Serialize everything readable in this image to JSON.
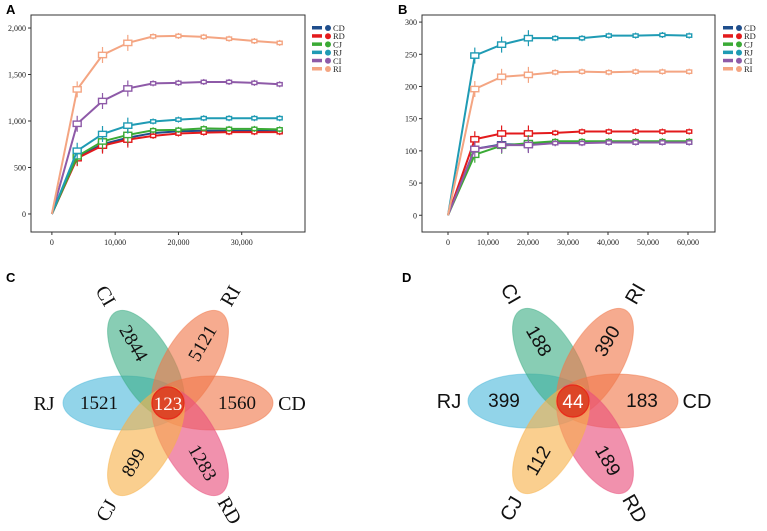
{
  "panels": {
    "A": "A",
    "B": "B",
    "C": "C",
    "D": "D"
  },
  "colors": {
    "CD": "#1f4e8c",
    "RD": "#e31a1c",
    "CJ": "#3aaa35",
    "RJ": "#1f9bb4",
    "CI": "#8e5aa8",
    "RI": "#f4a582"
  },
  "chart_data": [
    {
      "type": "line",
      "panel": "A",
      "title": "",
      "xlabel": "",
      "ylabel": "",
      "xlim": [
        -3300,
        40000
      ],
      "ylim": [
        -194,
        2140
      ],
      "xticks": [
        0,
        10000,
        20000,
        30000
      ],
      "xtick_labels": [
        "0",
        "10,000",
        "20,000",
        "30,000"
      ],
      "yticks": [
        0,
        500,
        1000,
        1500,
        2000
      ],
      "ytick_labels": [
        "0",
        "500",
        "1,000",
        "1,500",
        "2,000"
      ],
      "legend": [
        "CD",
        "RD",
        "CJ",
        "RJ",
        "CI",
        "RI"
      ],
      "legend_position": "right",
      "x": [
        0,
        4000,
        8000,
        12000,
        16000,
        20000,
        24000,
        28000,
        32000,
        36000
      ],
      "series": [
        {
          "name": "CD",
          "values": [
            0,
            610,
            750,
            820,
            870,
            890,
            895,
            895,
            895,
            890
          ]
        },
        {
          "name": "RD",
          "values": [
            0,
            600,
            735,
            800,
            840,
            865,
            875,
            880,
            880,
            880
          ]
        },
        {
          "name": "CJ",
          "values": [
            0,
            620,
            780,
            850,
            900,
            905,
            920,
            915,
            915,
            910
          ]
        },
        {
          "name": "RJ",
          "values": [
            0,
            680,
            860,
            950,
            995,
            1015,
            1030,
            1030,
            1030,
            1030
          ]
        },
        {
          "name": "CI",
          "values": [
            0,
            970,
            1215,
            1350,
            1405,
            1410,
            1420,
            1420,
            1410,
            1395
          ]
        },
        {
          "name": "RI",
          "values": [
            0,
            1340,
            1710,
            1840,
            1910,
            1915,
            1905,
            1885,
            1860,
            1840
          ]
        }
      ]
    },
    {
      "type": "line",
      "panel": "B",
      "title": "",
      "xlabel": "",
      "ylabel": "",
      "xlim": [
        -6500,
        66750
      ],
      "ylim": [
        -26,
        311
      ],
      "xticks": [
        0,
        10000,
        20000,
        30000,
        40000,
        50000,
        60000
      ],
      "xtick_labels": [
        "0",
        "10,000",
        "20,000",
        "30,000",
        "40,000",
        "50,000",
        "60,000"
      ],
      "yticks": [
        0,
        50,
        100,
        150,
        200,
        250,
        300
      ],
      "ytick_labels": [
        "0",
        "50",
        "100",
        "150",
        "200",
        "250",
        "300"
      ],
      "legend": [
        "CD",
        "RD",
        "CJ",
        "RJ",
        "CI",
        "RI"
      ],
      "legend_position": "right",
      "x": [
        0,
        6700,
        13400,
        20100,
        26800,
        33500,
        40200,
        46900,
        53600,
        60300
      ],
      "series": [
        {
          "name": "CD",
          "values": [
            0,
            103,
            110,
            110,
            112,
            113,
            113,
            113,
            113,
            113
          ]
        },
        {
          "name": "RD",
          "values": [
            0,
            118,
            127,
            127,
            128,
            130,
            130,
            130,
            130,
            130
          ]
        },
        {
          "name": "CJ",
          "values": [
            0,
            94,
            108,
            112,
            115,
            115,
            115,
            115,
            115,
            115
          ]
        },
        {
          "name": "RJ",
          "values": [
            0,
            248,
            265,
            275,
            275,
            275,
            279,
            279,
            280,
            279
          ]
        },
        {
          "name": "CI",
          "values": [
            0,
            103,
            109,
            109,
            112,
            112,
            113,
            113,
            113,
            113
          ]
        },
        {
          "name": "RI",
          "values": [
            0,
            196,
            215,
            218,
            222,
            223,
            222,
            223,
            223,
            223
          ]
        }
      ]
    }
  ],
  "venn": [
    {
      "panel": "C",
      "sets": [
        {
          "name": "RJ",
          "unique": "1521",
          "color": "#4fb9dc"
        },
        {
          "name": "CI",
          "unique": "2844",
          "color": "#3fae86"
        },
        {
          "name": "RI",
          "unique": "5121",
          "color": "#f0784a"
        },
        {
          "name": "CD",
          "unique": "1560",
          "color": "#f0784a"
        },
        {
          "name": "RD",
          "unique": "1283",
          "color": "#e84e7a"
        },
        {
          "name": "CJ",
          "unique": "899",
          "color": "#f7b24a"
        }
      ],
      "shared": "123"
    },
    {
      "panel": "D",
      "sets": [
        {
          "name": "RJ",
          "unique": "399",
          "color": "#4fb9dc"
        },
        {
          "name": "CI",
          "unique": "188",
          "color": "#3fae86"
        },
        {
          "name": "RI",
          "unique": "390",
          "color": "#f0784a"
        },
        {
          "name": "CD",
          "unique": "183",
          "color": "#f0784a"
        },
        {
          "name": "RD",
          "unique": "189",
          "color": "#e84e7a"
        },
        {
          "name": "CJ",
          "unique": "112",
          "color": "#f7b24a"
        }
      ],
      "shared": "44"
    }
  ]
}
